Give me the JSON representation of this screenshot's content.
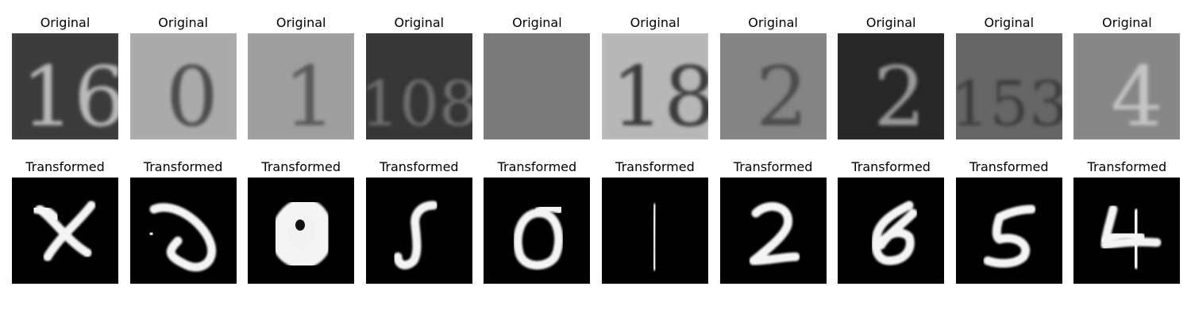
{
  "rows": [
    {
      "name": "original",
      "title": "Original",
      "images": [
        {
          "kind": "svhn",
          "text": "16",
          "bg": "#4a4a4a",
          "fg": "#b9b9b9",
          "accent": "#222222"
        },
        {
          "kind": "svhn",
          "text": "0",
          "bg": "#b4b4b4",
          "fg": "#4e4e4e",
          "accent": "#9a9a9a"
        },
        {
          "kind": "svhn",
          "text": "1",
          "bg": "#a8a8a8",
          "fg": "#5a5a5a",
          "accent": "#8c8c8c"
        },
        {
          "kind": "svhn",
          "text": "108",
          "bg": "#3e3e3e",
          "fg": "#6e6e6e",
          "accent": "#2c2c2c"
        },
        {
          "kind": "svhn",
          "text": "",
          "bg": "#7d7d7d",
          "fg": "#6e6e6e",
          "accent": "#747474"
        },
        {
          "kind": "svhn",
          "text": "18",
          "bg": "#c8c8c8",
          "fg": "#3a3a3a",
          "accent": "#9a9a9a"
        },
        {
          "kind": "svhn",
          "text": "2",
          "bg": "#8a8a8a",
          "fg": "#4e4e4e",
          "accent": "#7a7a7a"
        },
        {
          "kind": "svhn",
          "text": "2",
          "bg": "#2e2e2e",
          "fg": "#9a9a9a",
          "accent": "#1a1a1a"
        },
        {
          "kind": "svhn",
          "text": "153",
          "bg": "#6a6a6a",
          "fg": "#3e3e3e",
          "accent": "#5e5e5e"
        },
        {
          "kind": "svhn",
          "text": "4",
          "bg": "#8e8e8e",
          "fg": "#c4c4c4",
          "accent": "#7a7a7a"
        }
      ]
    },
    {
      "name": "transformed",
      "title": "Transformed",
      "images": [
        {
          "kind": "mnist",
          "shape": "x"
        },
        {
          "kind": "mnist",
          "shape": "hook"
        },
        {
          "kind": "mnist",
          "shape": "blob"
        },
        {
          "kind": "mnist",
          "shape": "j"
        },
        {
          "kind": "mnist",
          "shape": "zero"
        },
        {
          "kind": "mnist",
          "shape": "one"
        },
        {
          "kind": "mnist",
          "shape": "two"
        },
        {
          "kind": "mnist",
          "shape": "eight"
        },
        {
          "kind": "mnist",
          "shape": "five"
        },
        {
          "kind": "mnist",
          "shape": "four"
        }
      ]
    }
  ]
}
